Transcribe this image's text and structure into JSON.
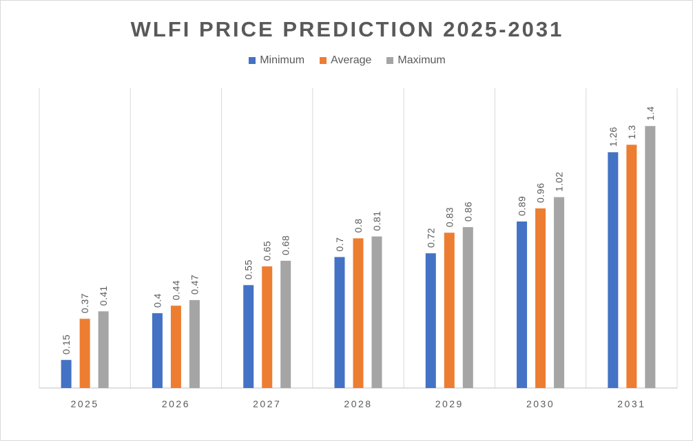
{
  "chart_data": {
    "type": "bar",
    "title": "WLFI PRICE PREDICTION 2025-2031",
    "categories": [
      "2025",
      "2026",
      "2027",
      "2028",
      "2029",
      "2030",
      "2031"
    ],
    "series": [
      {
        "name": "Minimum",
        "color": "#4472c4",
        "values": [
          0.15,
          0.4,
          0.55,
          0.7,
          0.72,
          0.89,
          1.26
        ]
      },
      {
        "name": "Average",
        "color": "#ed7d31",
        "values": [
          0.37,
          0.44,
          0.65,
          0.8,
          0.83,
          0.96,
          1.3
        ]
      },
      {
        "name": "Maximum",
        "color": "#a5a5a5",
        "values": [
          0.41,
          0.47,
          0.68,
          0.81,
          0.86,
          1.02,
          1.4
        ]
      }
    ],
    "ylim": [
      0,
      1.6
    ],
    "legend": "top-center",
    "grid": "vertical category separators",
    "data_labels": "rotated, above bars"
  }
}
